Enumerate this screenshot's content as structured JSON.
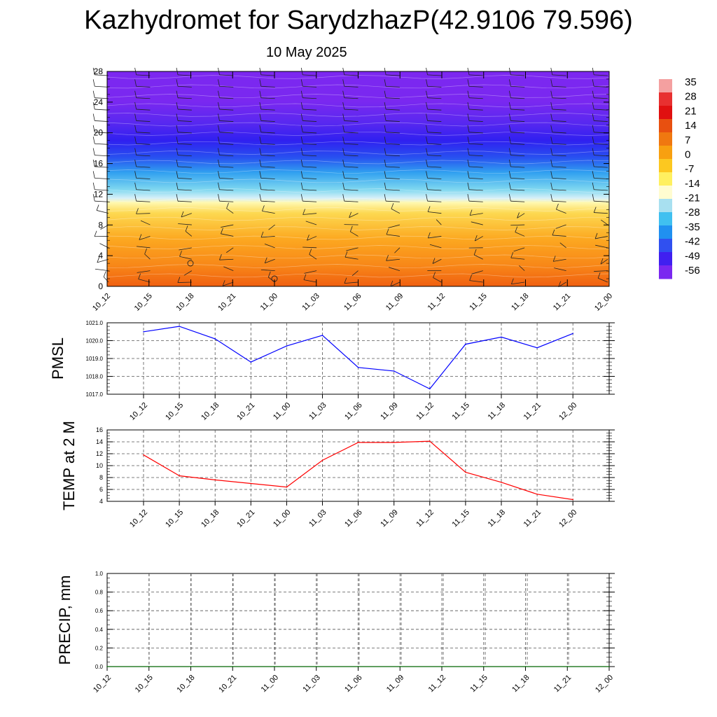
{
  "header": {
    "title": "Kazhydromet for SarydzhazP(42.9106 79.596)",
    "date": "10 May 2025"
  },
  "colors": {
    "pmsl_line": "#0000ff",
    "temp_line": "#ff0000",
    "precip_line": "#006400",
    "grid": "#000000"
  },
  "chart_data": [
    {
      "type": "heatmap",
      "name": "cross-section",
      "x_tick_labels": [
        "10_12",
        "10_15",
        "10_18",
        "10_21",
        "11_00",
        "11_03",
        "11_06",
        "11_09",
        "11_12",
        "11_15",
        "11_18",
        "11_21",
        "12_00"
      ],
      "y_ticks": [
        0,
        4,
        8,
        12,
        16,
        20,
        24,
        28
      ],
      "ylim": [
        0,
        28
      ],
      "colorbar_labels": [
        "35",
        "28",
        "21",
        "14",
        "7",
        "0",
        "-7",
        "-14",
        "-21",
        "-28",
        "-35",
        "-42",
        "-49",
        "-56"
      ],
      "colorbar_palette": [
        "#f4a0a0",
        "#e83030",
        "#e01010",
        "#e85010",
        "#f07810",
        "#f8a010",
        "#fcc820",
        "#fff060",
        "#fffcd0",
        "#a8e0f0",
        "#40c0f0",
        "#2090f0",
        "#3050f0",
        "#4020f0",
        "#7a28f0"
      ],
      "overlay": "wind barbs"
    },
    {
      "type": "line",
      "name": "pmsl",
      "ylabel": "PMSL",
      "categories": [
        "10_12",
        "10_15",
        "10_18",
        "10_21",
        "11_00",
        "11_03",
        "11_06",
        "11_09",
        "11_12",
        "11_15",
        "11_18",
        "11_21",
        "12_00"
      ],
      "values": [
        1020.5,
        1020.8,
        1020.1,
        1018.8,
        1019.7,
        1020.3,
        1018.5,
        1018.3,
        1017.3,
        1019.8,
        1020.2,
        1019.6,
        1020.4
      ],
      "ylim": [
        1017.0,
        1021.0
      ],
      "y_ticks": [
        "1017.0",
        "1018.0",
        "1019.0",
        "1020.0",
        "1021.0"
      ],
      "grid": true
    },
    {
      "type": "line",
      "name": "temp",
      "ylabel": "TEMP at 2 M",
      "categories": [
        "10_12",
        "10_15",
        "10_18",
        "10_21",
        "11_00",
        "11_03",
        "11_06",
        "11_09",
        "11_12",
        "11_15",
        "11_18",
        "11_21",
        "12_00"
      ],
      "values": [
        11.8,
        8.3,
        7.6,
        7.0,
        6.4,
        10.9,
        13.9,
        13.9,
        14.1,
        8.9,
        7.2,
        5.2,
        4.3
      ],
      "ylim": [
        4,
        16
      ],
      "y_ticks": [
        "4",
        "6",
        "8",
        "10",
        "12",
        "14",
        "16"
      ],
      "grid": true
    },
    {
      "type": "line",
      "name": "precip",
      "ylabel": "PRECIP, mm",
      "categories": [
        "10_12",
        "10_15",
        "10_18",
        "10_21",
        "11_00",
        "11_03",
        "11_06",
        "11_09",
        "11_12",
        "11_15",
        "11_18",
        "11_21",
        "12_00"
      ],
      "values": [
        0,
        0,
        0,
        0,
        0,
        0,
        0,
        0,
        0,
        0,
        0,
        0,
        0
      ],
      "ylim": [
        0,
        1.0
      ],
      "y_ticks": [
        "0.0",
        "0.2",
        "0.4",
        "0.6",
        "0.8",
        "1.0"
      ],
      "grid": true
    }
  ]
}
